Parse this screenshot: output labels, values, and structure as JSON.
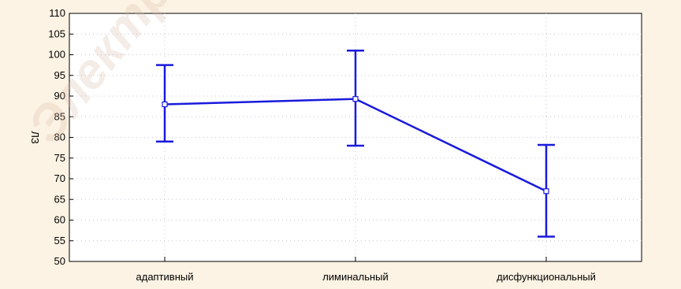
{
  "chart_data": {
    "type": "line",
    "categories": [
      "адаптивный",
      "лиминальный",
      "дисфункциональный"
    ],
    "series": [
      {
        "values": [
          88,
          89.3,
          67
        ],
        "lower": [
          79,
          78,
          56
        ],
        "upper": [
          97.5,
          101,
          78.2
        ]
      }
    ],
    "ylabel": "ЛЗ",
    "ylim": [
      50,
      110
    ],
    "yticks": [
      50,
      55,
      60,
      65,
      70,
      75,
      80,
      85,
      90,
      95,
      100,
      105,
      110
    ],
    "grid": true,
    "colors": {
      "line": "#1a1adc",
      "background": "#fdf3e4",
      "plot_background": "#ffffff",
      "grid": "#c4c4e0",
      "axis": "#000000"
    }
  },
  "watermark": "Электронный архив БГПУ"
}
